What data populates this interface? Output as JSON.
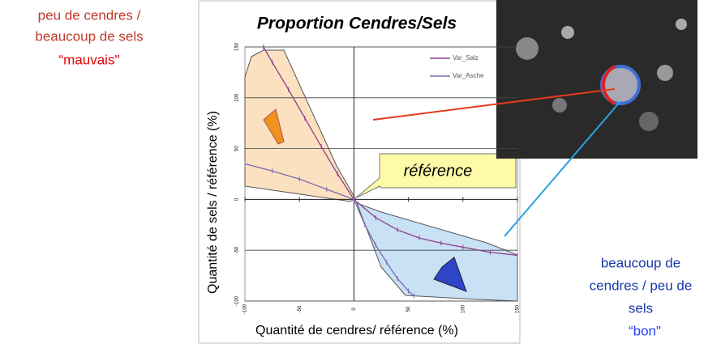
{
  "chart_data": {
    "type": "line",
    "title": "Proportion Cendres/Sels",
    "x_label": "Quantité de cendres/ référence (%)",
    "y_label": "Quantité de sels / référence (%)",
    "xlim": [
      -100,
      150
    ],
    "xticks": [
      -100,
      -50,
      0,
      50,
      100,
      150
    ],
    "ylim": [
      -100,
      150
    ],
    "yticks": [
      -100,
      -50,
      0,
      50,
      100,
      150
    ],
    "grid": true,
    "legend": "upper right",
    "series": [
      {
        "name": "Var_Salz",
        "color": "#8e3f8e",
        "x": [
          -83,
          -75,
          -60,
          -45,
          -30,
          -15,
          0,
          20,
          40,
          60,
          80,
          100,
          125,
          150
        ],
        "values": [
          150,
          135,
          108,
          80,
          52,
          25,
          0,
          -18,
          -30,
          -38,
          -43,
          -47,
          -52,
          -55
        ]
      },
      {
        "name": "Var_Asche",
        "color": "#7b6bb0",
        "x": [
          -100,
          -75,
          -50,
          -25,
          0,
          10,
          20,
          30,
          40,
          50,
          55
        ],
        "values": [
          35,
          28,
          20,
          10,
          0,
          -25,
          -45,
          -62,
          -78,
          -90,
          -95
        ]
      }
    ],
    "annotations": [
      {
        "text": "peu de cendres /"
      },
      {
        "text": "beaucoup de sels"
      },
      {
        "text": "“mauvais\""
      },
      {
        "text": "référence"
      },
      {
        "text": "beaucoup de"
      },
      {
        "text": "cendres / peu de"
      },
      {
        "text": "sels"
      },
      {
        "text": "“bon\""
      }
    ]
  }
}
